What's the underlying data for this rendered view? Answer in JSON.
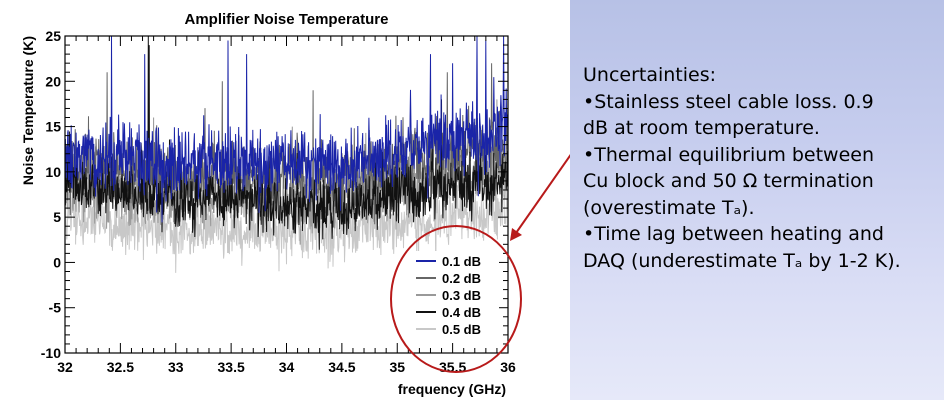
{
  "chart_data": {
    "type": "line",
    "title": "Amplifier Noise Temperature",
    "xlabel": "frequency (GHz)",
    "ylabel": "Noise Temperature (K)",
    "xlim": [
      32,
      36
    ],
    "ylim": [
      -10,
      25
    ],
    "x_ticks": [
      "32",
      "32.5",
      "33",
      "33.5",
      "34",
      "34.5",
      "35",
      "35.5",
      "36"
    ],
    "y_ticks": [
      "-10",
      "-5",
      "0",
      "5",
      "10",
      "15",
      "20",
      "25"
    ],
    "grid": false,
    "legend_position": "bottom-right",
    "frequency_step_ghz": 0.004,
    "series": [
      {
        "name": "0.1 dB",
        "color": "#1a24a8",
        "baseline": [
          [
            32,
            12
          ],
          [
            32.5,
            11.5
          ],
          [
            33,
            11
          ],
          [
            33.5,
            11.5
          ],
          [
            34,
            11
          ],
          [
            34.5,
            11
          ],
          [
            35,
            12
          ],
          [
            35.5,
            13.5
          ],
          [
            36,
            14.5
          ]
        ],
        "noise_amplitude": 3.2,
        "spike_peaks": [
          [
            32.42,
            25
          ],
          [
            32.72,
            23
          ],
          [
            33.47,
            24.5
          ],
          [
            33.64,
            23
          ],
          [
            35.3,
            23
          ],
          [
            35.5,
            22
          ],
          [
            35.72,
            25
          ],
          [
            35.8,
            24.5
          ],
          [
            35.96,
            25
          ]
        ]
      },
      {
        "name": "0.2 dB",
        "color": "#666666",
        "baseline": [
          [
            32,
            10.5
          ],
          [
            32.5,
            10
          ],
          [
            33,
            9.5
          ],
          [
            33.5,
            10
          ],
          [
            34,
            9.5
          ],
          [
            34.5,
            9.5
          ],
          [
            35,
            10.5
          ],
          [
            35.5,
            12
          ],
          [
            36,
            13
          ]
        ],
        "noise_amplitude": 3.0,
        "spike_peaks": [
          [
            32.38,
            21
          ],
          [
            33.42,
            20
          ],
          [
            34.24,
            19
          ],
          [
            35.45,
            21
          ],
          [
            35.85,
            22
          ]
        ]
      },
      {
        "name": "0.3 dB",
        "color": "#999999",
        "baseline": [
          [
            32,
            8
          ],
          [
            32.5,
            7.5
          ],
          [
            33,
            7
          ],
          [
            33.5,
            7.5
          ],
          [
            34,
            7
          ],
          [
            34.5,
            7
          ],
          [
            35,
            8
          ],
          [
            35.5,
            9.5
          ],
          [
            36,
            10.5
          ]
        ],
        "noise_amplitude": 2.8,
        "spike_peaks": [
          [
            32.8,
            16
          ],
          [
            34.05,
            15
          ],
          [
            35.9,
            18
          ]
        ]
      },
      {
        "name": "0.4 dB",
        "color": "#111111",
        "baseline": [
          [
            32,
            9
          ],
          [
            32.5,
            8
          ],
          [
            33,
            7
          ],
          [
            33.5,
            7
          ],
          [
            34,
            6
          ],
          [
            34.5,
            6
          ],
          [
            35,
            7.5
          ],
          [
            35.5,
            8.5
          ],
          [
            36,
            9.5
          ]
        ],
        "noise_amplitude": 2.6,
        "spike_peaks": [
          [
            32.75,
            25
          ],
          [
            32.76,
            24
          ],
          [
            35.4,
            18
          ]
        ]
      },
      {
        "name": "0.5 dB",
        "color": "#c8c8c8",
        "baseline": [
          [
            32,
            5
          ],
          [
            32.5,
            4
          ],
          [
            33,
            3.5
          ],
          [
            33.5,
            3.5
          ],
          [
            34,
            3.5
          ],
          [
            34.5,
            3.5
          ],
          [
            35,
            4
          ],
          [
            35.5,
            5
          ],
          [
            36,
            6
          ]
        ],
        "noise_amplitude": 2.4,
        "spike_peaks": [
          [
            33.2,
            12
          ],
          [
            34.6,
            11
          ]
        ]
      }
    ]
  },
  "notes": {
    "heading": "Uncertainties:",
    "lines": [
      "•Stainless steel cable loss.  0.9",
      "dB at room temperature.",
      "•Thermal equilibrium between",
      "Cu block and 50 Ω termination",
      "(overestimate Tₐ).",
      "•Time lag between heating and",
      "DAQ (underestimate Tₐ by 1-2 K)."
    ]
  },
  "annotation": {
    "ellipse_color": "#b81a1a",
    "arrow_color": "#b81a1a"
  },
  "colors": {
    "text_panel_top": "#b7c1e6",
    "text_panel_bottom": "#e6e9f9",
    "axis": "#000000"
  }
}
